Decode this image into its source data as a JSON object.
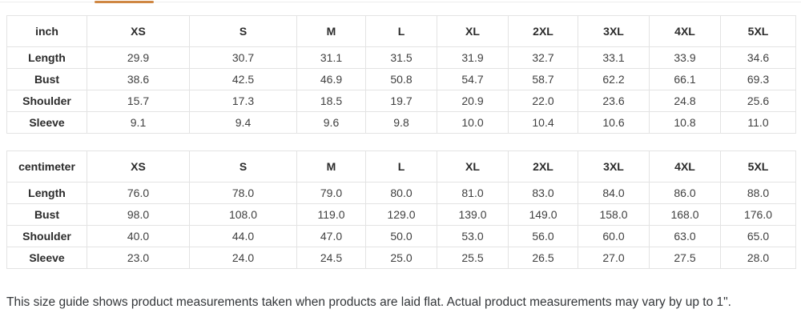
{
  "page": {
    "background_color": "#ffffff",
    "accent_color": "#cf8743",
    "grid_border_color": "#e3e3e3"
  },
  "tabs": {
    "active_tab_indicator_color": "#cf8743"
  },
  "tables": [
    {
      "unit_label": "inch",
      "columns": [
        "XS",
        "S",
        "M",
        "L",
        "XL",
        "2XL",
        "3XL",
        "4XL",
        "5XL"
      ],
      "rows": [
        {
          "label": "Length",
          "values": [
            "29.9",
            "30.7",
            "31.1",
            "31.5",
            "31.9",
            "32.7",
            "33.1",
            "33.9",
            "34.6"
          ]
        },
        {
          "label": "Bust",
          "values": [
            "38.6",
            "42.5",
            "46.9",
            "50.8",
            "54.7",
            "58.7",
            "62.2",
            "66.1",
            "69.3"
          ]
        },
        {
          "label": "Shoulder",
          "values": [
            "15.7",
            "17.3",
            "18.5",
            "19.7",
            "20.9",
            "22.0",
            "23.6",
            "24.8",
            "25.6"
          ]
        },
        {
          "label": "Sleeve",
          "values": [
            "9.1",
            "9.4",
            "9.6",
            "9.8",
            "10.0",
            "10.4",
            "10.6",
            "10.8",
            "11.0"
          ]
        }
      ]
    },
    {
      "unit_label": "centimeter",
      "columns": [
        "XS",
        "S",
        "M",
        "L",
        "XL",
        "2XL",
        "3XL",
        "4XL",
        "5XL"
      ],
      "rows": [
        {
          "label": "Length",
          "values": [
            "76.0",
            "78.0",
            "79.0",
            "80.0",
            "81.0",
            "83.0",
            "84.0",
            "86.0",
            "88.0"
          ]
        },
        {
          "label": "Bust",
          "values": [
            "98.0",
            "108.0",
            "119.0",
            "129.0",
            "139.0",
            "149.0",
            "158.0",
            "168.0",
            "176.0"
          ]
        },
        {
          "label": "Shoulder",
          "values": [
            "40.0",
            "44.0",
            "47.0",
            "50.0",
            "53.0",
            "56.0",
            "60.0",
            "63.0",
            "65.0"
          ]
        },
        {
          "label": "Sleeve",
          "values": [
            "23.0",
            "24.0",
            "24.5",
            "25.0",
            "25.5",
            "26.5",
            "27.0",
            "27.5",
            "28.0"
          ]
        }
      ]
    }
  ],
  "note": "This size guide shows product measurements taken when products are laid flat. Actual product measurements may vary by up to 1\"."
}
